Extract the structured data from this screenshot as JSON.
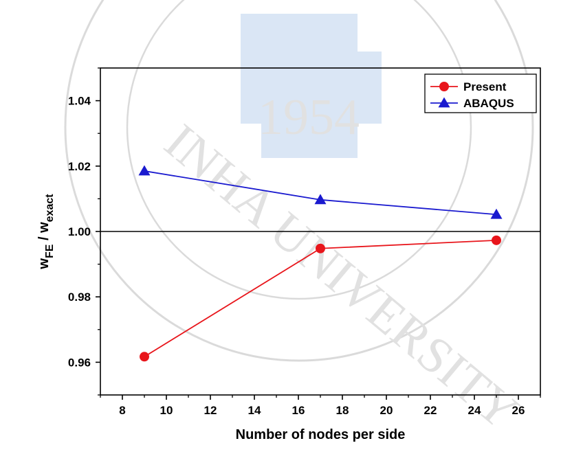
{
  "chart_data": {
    "type": "line",
    "xlabel": "Number of nodes per side",
    "ylabel_main": "w",
    "ylabel_sub1": "FE",
    "ylabel_mid": " / w",
    "ylabel_sub2": "exact",
    "xlim": [
      7,
      27
    ],
    "ylim": [
      0.95,
      1.05
    ],
    "x_ticks": [
      8,
      10,
      12,
      14,
      16,
      18,
      20,
      22,
      24,
      26
    ],
    "y_ticks": [
      0.96,
      0.98,
      1.0,
      1.02,
      1.04
    ],
    "x_tick_labels": [
      "8",
      "10",
      "12",
      "14",
      "16",
      "18",
      "20",
      "22",
      "24",
      "26"
    ],
    "y_tick_labels": [
      "0.96",
      "0.98",
      "1.00",
      "1.02",
      "1.04"
    ],
    "reference_line_y": 1.0,
    "grid": false,
    "legend_position": "top-right",
    "series": [
      {
        "name": "Present",
        "color": "#e8151b",
        "marker": "circle",
        "x": [
          9,
          17,
          25
        ],
        "y": [
          0.9617,
          0.9948,
          0.9973
        ]
      },
      {
        "name": "ABAQUS",
        "color": "#1a1acf",
        "marker": "triangle",
        "x": [
          9,
          17,
          25
        ],
        "y": [
          1.0185,
          1.0097,
          1.0052
        ]
      }
    ]
  },
  "watermark": {
    "year": "1954",
    "text": "INHA UNIVERSITY",
    "color": "#bcd3ee"
  }
}
